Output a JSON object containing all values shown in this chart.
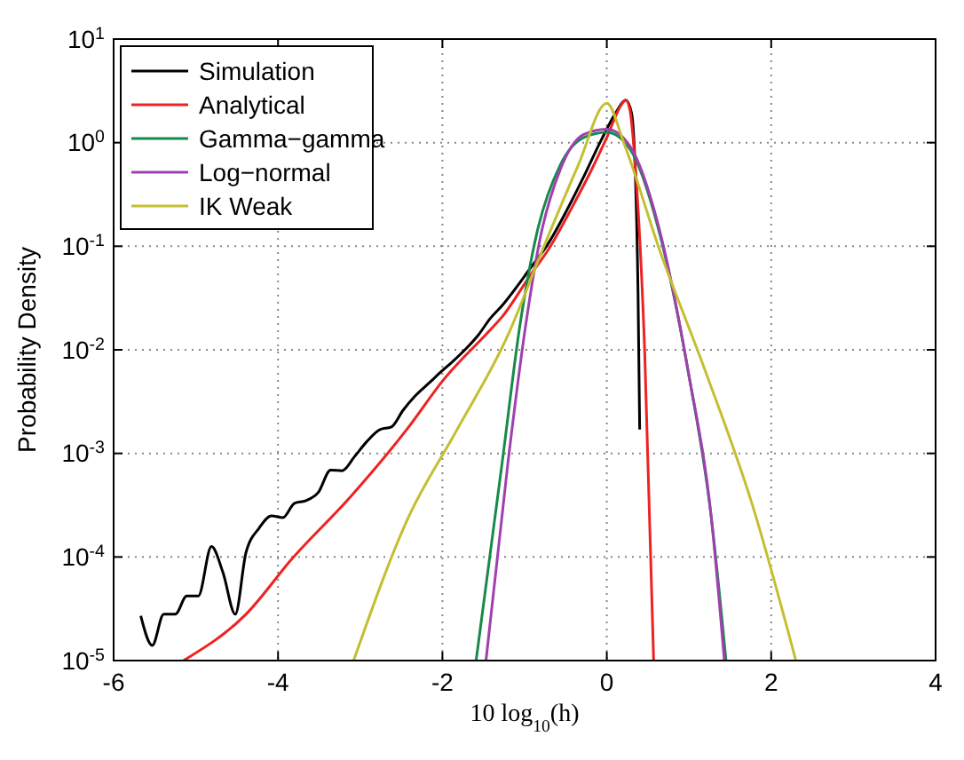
{
  "chart_data": {
    "type": "line",
    "xlabel": "10 log$_{10}$(h)",
    "ylabel": "Probability Density",
    "xlim": [
      -6,
      4
    ],
    "xticks": [
      -6,
      -4,
      -2,
      0,
      2,
      4
    ],
    "ylim": [
      1e-05,
      10
    ],
    "yticks": [
      {
        "value": 1e-05,
        "label": "10$^{-5}$"
      },
      {
        "value": 0.0001,
        "label": "10$^{-4}$"
      },
      {
        "value": 0.001,
        "label": "10$^{-3}$"
      },
      {
        "value": 0.01,
        "label": "10$^{-2}$"
      },
      {
        "value": 0.1,
        "label": "10$^{-1}$"
      },
      {
        "value": 1,
        "label": "10$^{0}$"
      },
      {
        "value": 10,
        "label": "10$^{1}$"
      }
    ],
    "log": "y",
    "grid": true,
    "legend": "top left",
    "marker": "none",
    "line_style": "solid",
    "series": [
      {
        "name": "Simulation",
        "color": "#000000",
        "x": [
          -5.67,
          -5.53,
          -5.39,
          -5.25,
          -5.11,
          -4.97,
          -4.81,
          -4.67,
          -4.52,
          -4.39,
          -4.23,
          -4.08,
          -3.94,
          -3.8,
          -3.66,
          -3.51,
          -3.36,
          -3.22,
          -3.07,
          -2.92,
          -2.76,
          -2.62,
          -2.48,
          -2.33,
          -2.16,
          -2.01,
          -1.86,
          -1.7,
          -1.56,
          -1.42,
          -1.27,
          -0.92,
          -0.71,
          -0.49,
          -0.28,
          -0.07,
          0.11,
          0.23,
          0.3,
          0.35,
          0.38,
          0.4
        ],
        "values": [
          2.7e-05,
          1.4e-05,
          2.8e-05,
          2.8e-05,
          4.2e-05,
          4.2e-05,
          0.000126,
          7.1e-05,
          2.8e-05,
          0.00011,
          0.00019,
          0.00025,
          0.00024,
          0.00033,
          0.00035,
          0.00042,
          0.00069,
          0.00068,
          0.00093,
          0.0013,
          0.0017,
          0.0018,
          0.0026,
          0.0036,
          0.0048,
          0.0062,
          0.0079,
          0.0105,
          0.014,
          0.02,
          0.027,
          0.063,
          0.107,
          0.22,
          0.47,
          1.05,
          1.95,
          2.57,
          1.95,
          0.42,
          0.035,
          0.0017
        ]
      },
      {
        "name": "Analytical",
        "color": "#ee2222",
        "x": [
          -5.15,
          -4.39,
          -3.82,
          -3.12,
          -2.41,
          -1.99,
          -1.42,
          -1.27,
          -0.92,
          -0.71,
          -0.42,
          -0.21,
          0,
          0.18,
          0.23,
          0.28,
          0.35,
          0.46,
          0.57
        ],
        "values": [
          1e-05,
          2.8e-05,
          9.8e-05,
          0.00038,
          0.0018,
          0.0051,
          0.0155,
          0.021,
          0.054,
          0.093,
          0.24,
          0.5,
          1.12,
          2.34,
          2.57,
          2.09,
          0.54,
          0.0102,
          1e-05
        ]
      },
      {
        "name": "Gamma−gamma",
        "color": "#168a4a",
        "x": [
          -1.59,
          -1.27,
          -1.06,
          -0.85,
          -0.57,
          -0.28,
          0,
          0.28,
          0.64,
          0.99,
          1.27,
          1.45
        ],
        "values": [
          1e-05,
          0.00085,
          0.0166,
          0.135,
          0.6,
          1.12,
          1.26,
          0.87,
          0.135,
          0.0062,
          0.000245,
          1e-05
        ]
      },
      {
        "name": "Log−normal",
        "color": "#a040b0",
        "x": [
          -1.47,
          -1.2,
          -0.99,
          -0.81,
          -0.57,
          -0.28,
          0,
          0.28,
          0.64,
          0.99,
          1.27,
          1.43
        ],
        "values": [
          1e-05,
          0.00085,
          0.0166,
          0.12,
          0.54,
          1.2,
          1.35,
          0.93,
          0.145,
          0.0062,
          0.000245,
          1e-05
        ]
      },
      {
        "name": "IK Weak",
        "color": "#c4bf30",
        "x": [
          -3.08,
          -2.41,
          -1.84,
          -1.2,
          -0.78,
          -0.35,
          0,
          0.21,
          0.64,
          1.2,
          1.77,
          2.3
        ],
        "values": [
          1e-05,
          0.000245,
          0.0016,
          0.014,
          0.093,
          0.6,
          2.4,
          0.98,
          0.093,
          0.0062,
          0.00032,
          1e-05
        ]
      }
    ]
  }
}
